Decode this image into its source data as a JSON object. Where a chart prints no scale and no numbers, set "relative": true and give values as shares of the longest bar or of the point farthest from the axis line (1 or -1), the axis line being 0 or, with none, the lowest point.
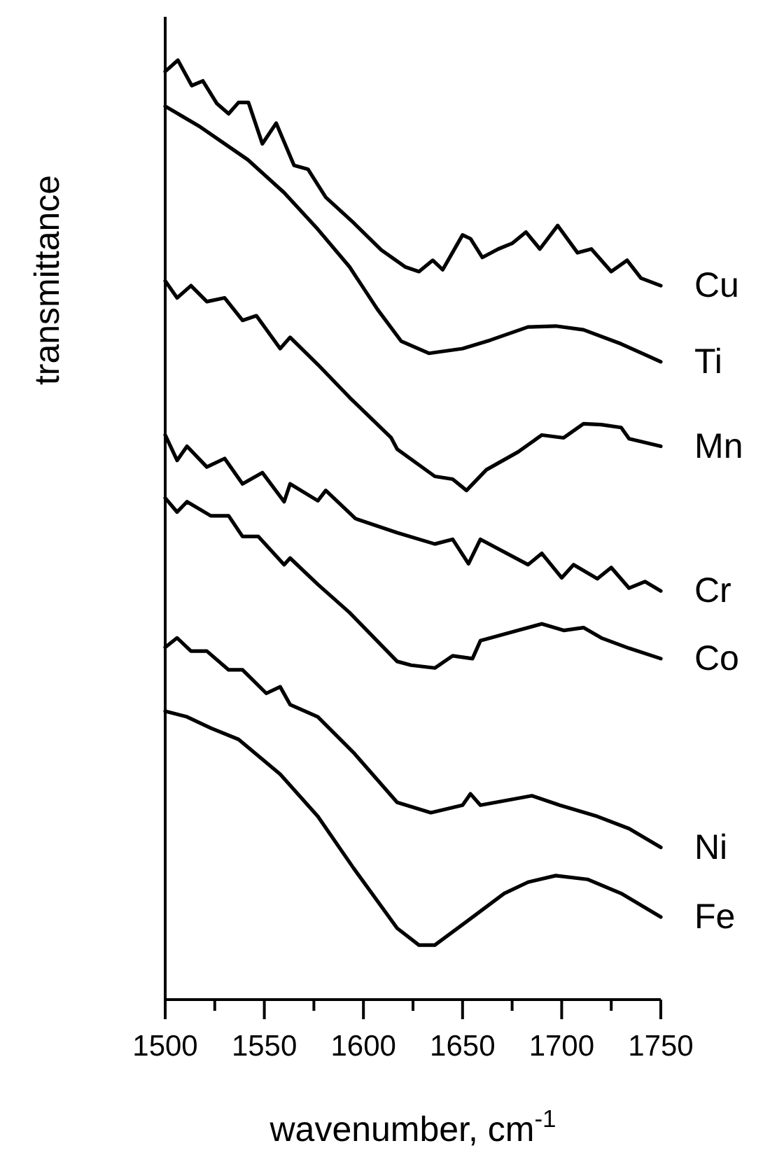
{
  "chart_data": {
    "type": "line",
    "relative": true,
    "xlabel": "wavenumber, cm$^{-1}$",
    "ylabel": "transmittance",
    "xlim": [
      1500,
      1750
    ],
    "xticks": [
      1500,
      {
        "value": 1525,
        "label": null
      },
      1550,
      {
        "value": 1575,
        "label": null
      },
      1600,
      {
        "value": 1625,
        "label": null
      },
      1650,
      {
        "value": 1675,
        "label": null
      },
      1700,
      {
        "value": 1725,
        "label": null
      },
      1750
    ],
    "legend": false,
    "grid": false,
    "marker": "none",
    "line_style": "solid",
    "series": [
      {
        "name": "Cu",
        "color": "#000000",
        "x": [
          1500,
          1506.4,
          1513.4,
          1519,
          1526,
          1532,
          1537,
          1542,
          1549,
          1556,
          1565,
          1572,
          1581,
          1595,
          1609,
          1621,
          1628,
          1635,
          1640,
          1650,
          1654,
          1660,
          1668,
          1675,
          1682,
          1689,
          1698,
          1708,
          1715,
          1725,
          1733,
          1740,
          1750
        ],
        "values": [
          0.988,
          1.0,
          0.973,
          0.978,
          0.954,
          0.943,
          0.955,
          0.955,
          0.911,
          0.933,
          0.888,
          0.884,
          0.854,
          0.827,
          0.798,
          0.78,
          0.775,
          0.787,
          0.777,
          0.814,
          0.81,
          0.79,
          0.799,
          0.805,
          0.817,
          0.799,
          0.824,
          0.795,
          0.799,
          0.775,
          0.787,
          0.768,
          0.76
        ]
      },
      {
        "name": "Ti",
        "color": "#000000",
        "x": [
          1500,
          1517.7,
          1541.7,
          1560,
          1577,
          1593,
          1607,
          1619,
          1633,
          1650,
          1664,
          1683,
          1697,
          1711,
          1730,
          1750
        ],
        "values": [
          0.951,
          0.929,
          0.894,
          0.859,
          0.82,
          0.78,
          0.735,
          0.701,
          0.688,
          0.693,
          0.702,
          0.716,
          0.717,
          0.713,
          0.698,
          0.679
        ]
      },
      {
        "name": "Mn",
        "color": "#000000",
        "x": [
          1500,
          1506,
          1513,
          1521,
          1530,
          1539,
          1546,
          1558,
          1563,
          1577,
          1593,
          1614,
          1617,
          1636,
          1645,
          1652,
          1662,
          1678,
          1690,
          1701,
          1711,
          1720,
          1730,
          1734,
          1750
        ],
        "values": [
          0.765,
          0.747,
          0.76,
          0.743,
          0.747,
          0.723,
          0.728,
          0.693,
          0.705,
          0.676,
          0.641,
          0.598,
          0.586,
          0.557,
          0.554,
          0.542,
          0.564,
          0.583,
          0.601,
          0.598,
          0.613,
          0.612,
          0.609,
          0.597,
          0.589
        ]
      },
      {
        "name": "Cr",
        "color": "#000000",
        "x": [
          1500,
          1506,
          1511,
          1521,
          1530,
          1539,
          1549,
          1560,
          1563,
          1577,
          1581,
          1596,
          1617,
          1636,
          1645,
          1653,
          1659,
          1683,
          1690,
          1700,
          1706,
          1718,
          1725,
          1734,
          1742,
          1750
        ],
        "values": [
          0.601,
          0.574,
          0.589,
          0.567,
          0.576,
          0.549,
          0.561,
          0.53,
          0.549,
          0.531,
          0.542,
          0.512,
          0.497,
          0.485,
          0.49,
          0.464,
          0.49,
          0.463,
          0.475,
          0.449,
          0.463,
          0.448,
          0.46,
          0.438,
          0.445,
          0.435
        ]
      },
      {
        "name": "Co",
        "color": "#000000",
        "x": [
          1500,
          1506,
          1511,
          1523,
          1532,
          1539,
          1547,
          1560,
          1563,
          1577,
          1593,
          1617,
          1624,
          1636,
          1645,
          1655,
          1659,
          1678,
          1690,
          1701,
          1711,
          1720,
          1734,
          1750
        ],
        "values": [
          0.534,
          0.519,
          0.53,
          0.515,
          0.515,
          0.493,
          0.493,
          0.463,
          0.47,
          0.442,
          0.412,
          0.36,
          0.356,
          0.353,
          0.366,
          0.363,
          0.382,
          0.393,
          0.4,
          0.393,
          0.396,
          0.385,
          0.374,
          0.363
        ]
      },
      {
        "name": "Ni",
        "color": "#000000",
        "x": [
          1500,
          1506,
          1513,
          1521,
          1532,
          1539,
          1551,
          1558,
          1563,
          1577,
          1595,
          1617,
          1634,
          1650,
          1654,
          1659,
          1685,
          1699,
          1718,
          1734,
          1750
        ],
        "values": [
          0.375,
          0.385,
          0.371,
          0.371,
          0.351,
          0.351,
          0.326,
          0.333,
          0.314,
          0.301,
          0.263,
          0.21,
          0.199,
          0.207,
          0.219,
          0.207,
          0.217,
          0.207,
          0.195,
          0.182,
          0.162
        ]
      },
      {
        "name": "Fe",
        "color": "#000000",
        "x": [
          1500,
          1511,
          1523,
          1537,
          1558,
          1577,
          1595,
          1617,
          1628,
          1636,
          1652,
          1671,
          1683,
          1697,
          1713,
          1730,
          1750
        ],
        "values": [
          0.307,
          0.301,
          0.289,
          0.277,
          0.24,
          0.195,
          0.14,
          0.076,
          0.058,
          0.058,
          0.083,
          0.113,
          0.125,
          0.132,
          0.128,
          0.113,
          0.088
        ]
      }
    ]
  }
}
